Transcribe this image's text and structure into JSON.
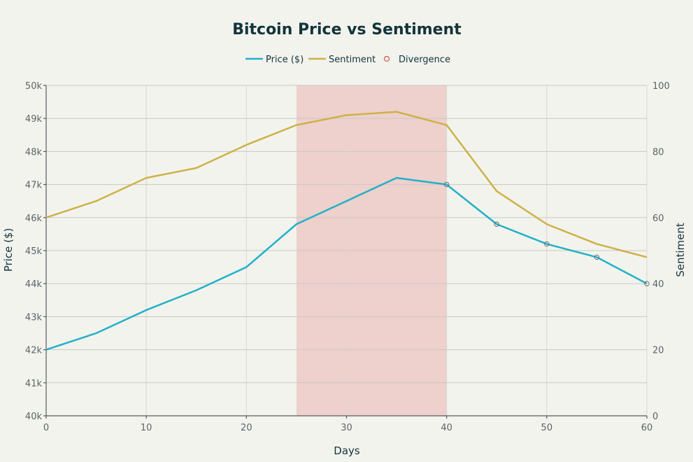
{
  "chart_data": {
    "type": "line",
    "title": "Bitcoin Price vs Sentiment",
    "xlabel": "Days",
    "ylabel": "Price ($)",
    "y2label": "Sentiment",
    "xlim": [
      0,
      60
    ],
    "ylim": [
      40000,
      50000
    ],
    "y2lim": [
      0,
      100
    ],
    "x_ticks": [
      0,
      10,
      20,
      30,
      40,
      50,
      60
    ],
    "y_ticks": [
      {
        "value": 40000,
        "label": "40k"
      },
      {
        "value": 41000,
        "label": "41k"
      },
      {
        "value": 42000,
        "label": "42k"
      },
      {
        "value": 43000,
        "label": "43k"
      },
      {
        "value": 44000,
        "label": "44k"
      },
      {
        "value": 45000,
        "label": "45k"
      },
      {
        "value": 46000,
        "label": "46k"
      },
      {
        "value": 47000,
        "label": "47k"
      },
      {
        "value": 48000,
        "label": "48k"
      },
      {
        "value": 49000,
        "label": "49k"
      },
      {
        "value": 50000,
        "label": "50k"
      }
    ],
    "y2_ticks": [
      0,
      20,
      40,
      60,
      80,
      100
    ],
    "x": [
      0,
      5,
      10,
      15,
      20,
      25,
      30,
      35,
      40,
      45,
      50,
      55,
      60
    ],
    "series": [
      {
        "name": "Price ($)",
        "axis": "left",
        "color": "#21b1c7",
        "values": [
          42000,
          42500,
          43200,
          43800,
          44500,
          45800,
          46500,
          47200,
          47000,
          45800,
          45200,
          44800,
          44000
        ]
      },
      {
        "name": "Sentiment",
        "axis": "right",
        "color": "#cdb248",
        "values": [
          60,
          65,
          72,
          75,
          82,
          88,
          91,
          92,
          88,
          68,
          58,
          52,
          48
        ]
      }
    ],
    "divergence": {
      "name": "Divergence",
      "color": "#d9534f",
      "x": [
        40,
        45,
        50,
        55,
        60
      ],
      "values": [
        47000,
        45800,
        45200,
        44800,
        44000
      ]
    },
    "highlight_region": {
      "x_start": 25,
      "x_end": 40,
      "color": "#e8a6a3"
    },
    "legend_position": "top-center",
    "grid": true
  }
}
